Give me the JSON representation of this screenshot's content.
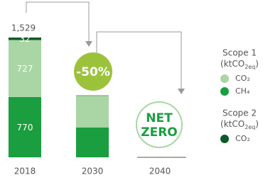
{
  "chart_data": {
    "type": "stacked_bar",
    "categories": [
      "2018",
      "2030",
      "2040"
    ],
    "ylim": [
      0,
      1800
    ],
    "total": {
      "value": 1529,
      "label": "1,529"
    },
    "show_labels": [
      true,
      false,
      false
    ],
    "legend_groups": [
      {
        "title": "Scope 1",
        "unit": "(ktCO",
        "unit_sub": "2eq",
        "unit_end": ")"
      },
      {
        "title": "Scope 2",
        "unit": "(ktCO",
        "unit_sub": "2eq",
        "unit_end": ")"
      }
    ],
    "series": [
      {
        "name": "CH₄",
        "group": 0,
        "color": "#1a9e3f",
        "values": [
          770,
          380,
          0
        ]
      },
      {
        "name": "CO₂",
        "group": 0,
        "color": "#a9d6a4",
        "values": [
          727,
          405,
          0
        ]
      },
      {
        "name": "CO₂",
        "group": 1,
        "color": "#0d5a29",
        "values": [
          32,
          5,
          0
        ]
      }
    ],
    "annotations": {
      "reduction": "-50%",
      "net_zero": [
        "NET",
        "ZERO"
      ]
    }
  }
}
